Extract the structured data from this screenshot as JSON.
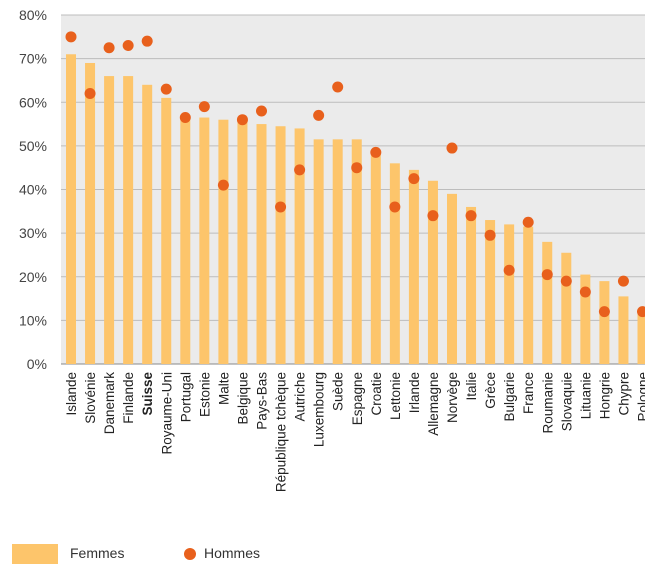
{
  "chart_data": {
    "type": "bar",
    "categories": [
      "Islande",
      "Slovénie",
      "Danemark",
      "Finlande",
      "Suisse",
      "Royaume-Uni",
      "Portugal",
      "Estonie",
      "Malte",
      "Belgique",
      "Pays-Bas",
      "République tchèque",
      "Autriche",
      "Luxembourg",
      "Suède",
      "Espagne",
      "Croatie",
      "Lettonie",
      "Irlande",
      "Allemagne",
      "Norvège",
      "Italie",
      "Grèce",
      "Bulgarie",
      "France",
      "Roumanie",
      "Slovaquie",
      "Lituanie",
      "Hongrie",
      "Chypre",
      "Pologne"
    ],
    "highlight_category": "Suisse",
    "series": [
      {
        "name": "Femmes",
        "type": "bar",
        "color": "#FDC56B",
        "values": [
          71,
          69,
          66,
          66,
          64,
          61,
          57,
          56.5,
          56,
          56,
          55,
          54.5,
          54,
          51.5,
          51.5,
          51.5,
          48.5,
          46,
          44.5,
          42,
          39,
          36,
          33,
          32,
          31.5,
          28,
          25.5,
          20.5,
          19,
          15.5,
          11.5
        ]
      },
      {
        "name": "Hommes",
        "type": "scatter",
        "color": "#E8601C",
        "values": [
          75,
          62,
          72.5,
          73,
          74,
          63,
          56.5,
          59,
          41,
          56,
          58,
          36,
          44.5,
          57,
          63.5,
          45,
          48.5,
          36,
          42.5,
          34,
          49.5,
          34,
          29.5,
          21.5,
          32.5,
          20.5,
          19,
          16.5,
          12,
          19,
          12
        ]
      }
    ],
    "y_ticks": [
      "0%",
      "10%",
      "20%",
      "30%",
      "40%",
      "50%",
      "60%",
      "70%",
      "80%"
    ],
    "ylim": [
      0,
      80
    ],
    "y_unit": "%",
    "grid": true,
    "legend_position": "bottom-left",
    "plot_background": "#EBEBEB",
    "gridline_color": "#BDBDBD"
  },
  "legend": {
    "femmes_label": "Femmes",
    "hommes_label": "Hommes"
  }
}
